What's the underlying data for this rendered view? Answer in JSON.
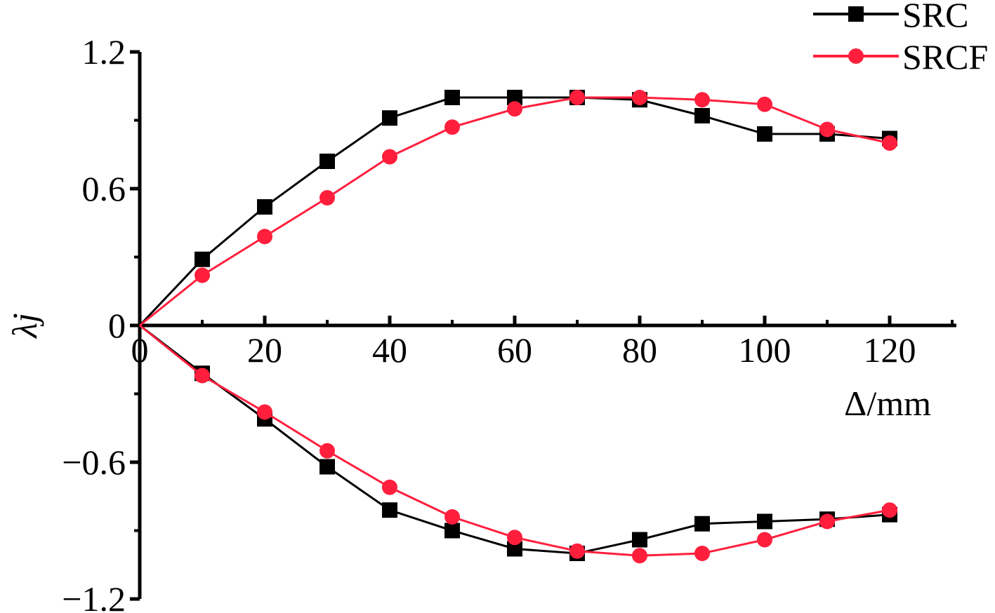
{
  "chart_data": {
    "type": "line",
    "title": "",
    "xlabel": "Δ/mm",
    "ylabel": "λj",
    "xlim": [
      0,
      130
    ],
    "ylim": [
      -1.2,
      1.2
    ],
    "x_ticks": [
      0,
      20,
      40,
      60,
      80,
      100,
      120
    ],
    "x_tick_labels": [
      "0",
      "20",
      "40",
      "60",
      "80",
      "100",
      "120"
    ],
    "y_ticks": [
      1.2,
      0.6,
      0,
      -0.6,
      -1.2
    ],
    "y_tick_labels": [
      "1.2",
      "0.6",
      "0",
      "−0.6",
      "−1.2"
    ],
    "grid": false,
    "legend_position": "top-right",
    "series": [
      {
        "name": "SRC",
        "color": "#000000",
        "marker": "square",
        "branches": [
          {
            "x": [
              0,
              10,
              20,
              30,
              40,
              50,
              60,
              70,
              80,
              90,
              100,
              110,
              120
            ],
            "y": [
              0,
              0.29,
              0.52,
              0.72,
              0.91,
              1.0,
              1.0,
              1.0,
              0.99,
              0.92,
              0.84,
              0.84,
              0.82
            ]
          },
          {
            "x": [
              0,
              10,
              20,
              30,
              40,
              50,
              60,
              70,
              80,
              90,
              100,
              110,
              120
            ],
            "y": [
              0,
              -0.21,
              -0.41,
              -0.62,
              -0.81,
              -0.9,
              -0.98,
              -1.0,
              -0.94,
              -0.87,
              -0.86,
              -0.85,
              -0.83
            ]
          }
        ]
      },
      {
        "name": "SRCF",
        "color": "#ff1f3d",
        "marker": "circle",
        "branches": [
          {
            "x": [
              0,
              10,
              20,
              30,
              40,
              50,
              60,
              70,
              80,
              90,
              100,
              110,
              120
            ],
            "y": [
              0,
              0.22,
              0.39,
              0.56,
              0.74,
              0.87,
              0.95,
              1.0,
              1.0,
              0.99,
              0.97,
              0.86,
              0.8
            ]
          },
          {
            "x": [
              0,
              10,
              20,
              30,
              40,
              50,
              60,
              70,
              80,
              90,
              100,
              110,
              120
            ],
            "y": [
              0,
              -0.22,
              -0.38,
              -0.55,
              -0.71,
              -0.84,
              -0.93,
              -0.99,
              -1.01,
              -1.0,
              -0.94,
              -0.86,
              -0.81
            ]
          }
        ]
      }
    ]
  }
}
